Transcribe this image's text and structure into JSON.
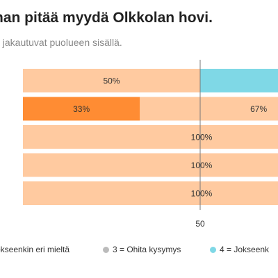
{
  "chart_data": {
    "type": "bar",
    "title": "nan pitää myydä Olkkolan hovi.",
    "subtitle": "t jakautuvat puolueen sisällä.",
    "stacked": true,
    "orientation": "horizontal",
    "categories": [
      "",
      "",
      "",
      "",
      ""
    ],
    "xlim": [
      0,
      100
    ],
    "x_ticks": [
      "50"
    ],
    "series": [
      {
        "name": "okseenkin eri mieltä",
        "color": "#FF8C33",
        "values": [
          0,
          33,
          0,
          0,
          0
        ],
        "labels": [
          "",
          "33%",
          "",
          "",
          ""
        ]
      },
      {
        "name": "3 = Ohita kysymys",
        "color": "#FFCAA0",
        "values": [
          50,
          67,
          100,
          100,
          100
        ],
        "labels": [
          "50%",
          "67%",
          "100%",
          "100%",
          "100%"
        ]
      },
      {
        "name": "4 = Jokseenk",
        "color": "#7FD8E6",
        "values": [
          50,
          0,
          0,
          0,
          0
        ],
        "labels": [
          "",
          "",
          "",
          "",
          ""
        ]
      }
    ],
    "legend_position": "bottom"
  },
  "legend": {
    "color_gray": "#BBBBBB"
  }
}
